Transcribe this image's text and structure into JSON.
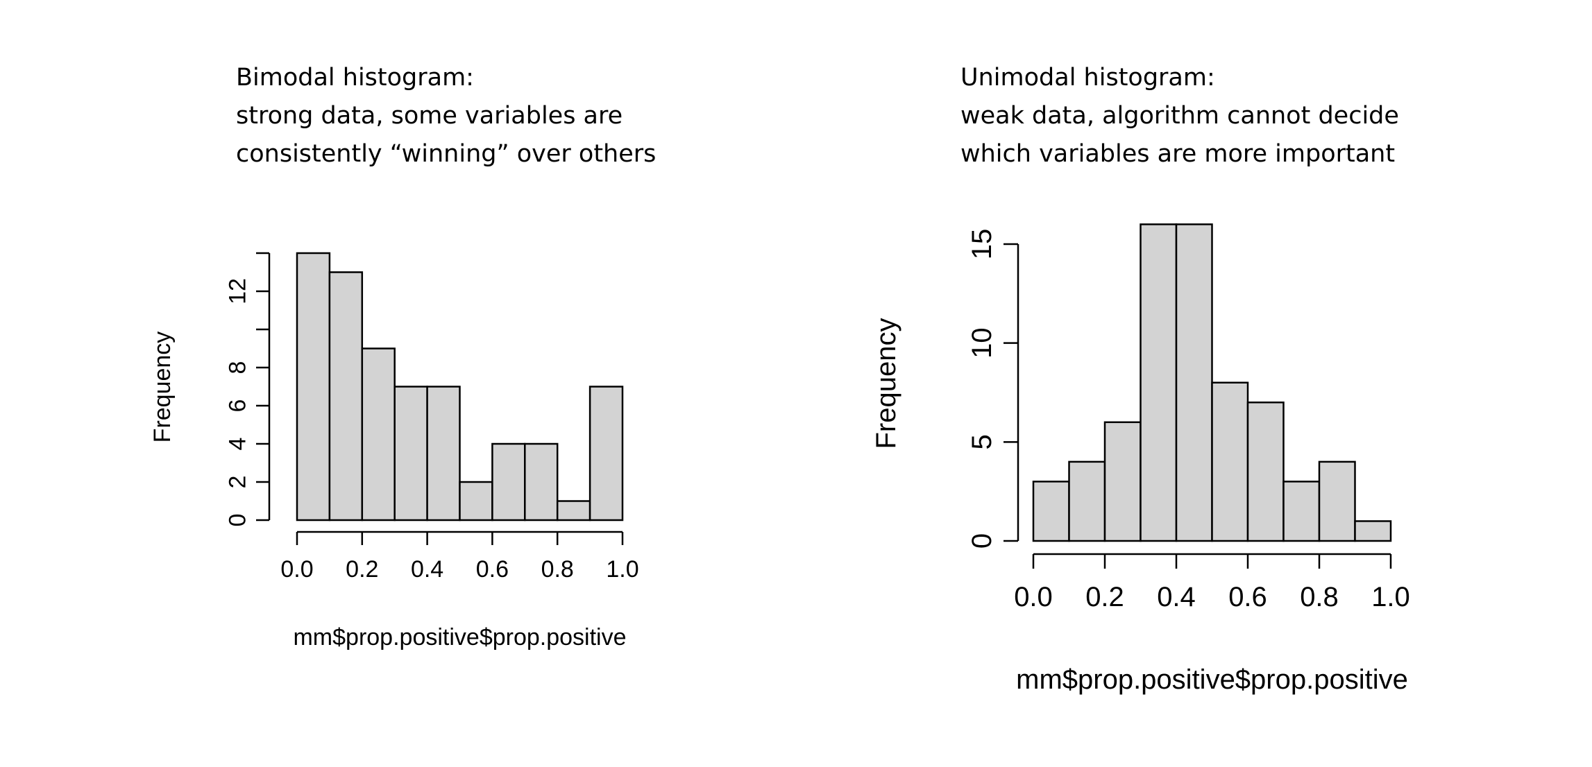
{
  "captions": [
    {
      "lines": [
        "Bimodal histogram:",
        "strong data, some variables are",
        "consistently “winning” over others"
      ]
    },
    {
      "lines": [
        "Unimodal histogram:",
        "weak data, algorithm cannot decide",
        "which variables are more important"
      ]
    }
  ],
  "chart_data": [
    {
      "type": "bar",
      "subtype": "histogram",
      "title": "",
      "xlabel": "mm$prop.positive$prop.positive",
      "ylabel": "Frequency",
      "bin_edges": [
        0.0,
        0.1,
        0.2,
        0.3,
        0.4,
        0.5,
        0.6,
        0.7,
        0.8,
        0.9,
        1.0
      ],
      "values": [
        14,
        13,
        9,
        7,
        7,
        2,
        4,
        4,
        1,
        7
      ],
      "xlim": [
        0,
        1
      ],
      "ylim": [
        0,
        14
      ],
      "x_ticks": [
        0.0,
        0.2,
        0.4,
        0.6,
        0.8,
        1.0
      ],
      "x_tick_labels": [
        "0.0",
        "0.2",
        "0.4",
        "0.6",
        "0.8",
        "1.0"
      ],
      "y_ticks": [
        0,
        2,
        4,
        6,
        8,
        10,
        12,
        14
      ],
      "y_tick_labels": [
        "0",
        "2",
        "4",
        "6",
        "8",
        "",
        "12",
        ""
      ],
      "bar_fill": "#d3d3d3",
      "bar_stroke": "#000000",
      "grid": false
    },
    {
      "type": "bar",
      "subtype": "histogram",
      "title": "",
      "xlabel": "mm$prop.positive$prop.positive",
      "ylabel": "Frequency",
      "bin_edges": [
        0.0,
        0.1,
        0.2,
        0.3,
        0.4,
        0.5,
        0.6,
        0.7,
        0.8,
        0.9,
        1.0
      ],
      "values": [
        3,
        4,
        6,
        16,
        16,
        8,
        7,
        3,
        4,
        1
      ],
      "xlim": [
        0,
        1
      ],
      "ylim": [
        0,
        15
      ],
      "x_ticks": [
        0.0,
        0.2,
        0.4,
        0.6,
        0.8,
        1.0
      ],
      "x_tick_labels": [
        "0.0",
        "0.2",
        "0.4",
        "0.6",
        "0.8",
        "1.0"
      ],
      "y_ticks": [
        0,
        5,
        10,
        15
      ],
      "y_tick_labels": [
        "0",
        "5",
        "10",
        "15"
      ],
      "bar_fill": "#d3d3d3",
      "bar_stroke": "#000000",
      "grid": false
    }
  ]
}
